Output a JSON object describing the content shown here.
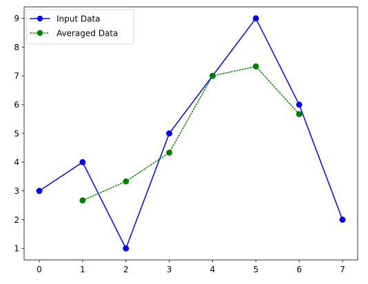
{
  "chart_data": {
    "type": "line",
    "title": "",
    "xlabel": "",
    "ylabel": "",
    "xlim": [
      -0.35,
      7.35
    ],
    "ylim": [
      0.6,
      9.4
    ],
    "x_ticks": [
      0,
      1,
      2,
      3,
      4,
      5,
      6,
      7
    ],
    "y_ticks": [
      1,
      2,
      3,
      4,
      5,
      6,
      7,
      8,
      9
    ],
    "grid": false,
    "legend_position": "top-left",
    "series": [
      {
        "name": "Input Data",
        "x": [
          0,
          1,
          2,
          3,
          4,
          5,
          6,
          7
        ],
        "values": [
          3,
          4,
          1,
          5,
          7,
          9,
          6,
          2
        ],
        "color": "#0000ff",
        "line_style": "solid",
        "marker": "circle"
      },
      {
        "name": "Averaged Data",
        "x": [
          1,
          2,
          3,
          4,
          5,
          6
        ],
        "values": [
          2.67,
          3.33,
          4.33,
          7.0,
          7.33,
          5.67
        ],
        "color": "#008000",
        "line_style": "dotted",
        "marker": "circle"
      }
    ]
  }
}
